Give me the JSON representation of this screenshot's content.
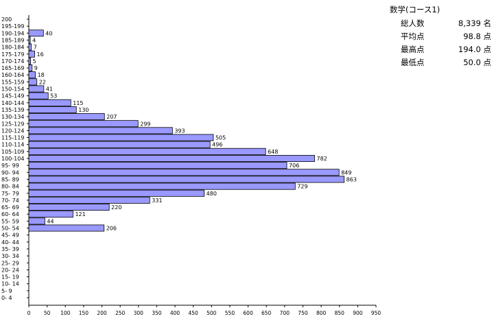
{
  "chart_data": {
    "type": "bar",
    "orientation": "horizontal",
    "categories": [
      "200",
      "195-199",
      "190-194",
      "185-189",
      "180-184",
      "175-179",
      "170-174",
      "165-169",
      "160-164",
      "155-159",
      "150-154",
      "145-149",
      "140-144",
      "135-139",
      "130-134",
      "125-129",
      "120-124",
      "115-119",
      "110-114",
      "105-109",
      "100-104",
      "95- 99",
      "90- 94",
      "85- 89",
      "80- 84",
      "75- 79",
      "70- 74",
      "65- 69",
      "60- 64",
      "55- 59",
      "50- 54",
      "45- 49",
      "40- 44",
      "35- 39",
      "30- 34",
      "25- 29",
      "20- 24",
      "15- 19",
      "10- 14",
      "5- 9",
      "0- 4"
    ],
    "values": [
      null,
      null,
      40,
      4,
      7,
      16,
      5,
      9,
      18,
      22,
      41,
      53,
      115,
      130,
      207,
      299,
      393,
      505,
      496,
      648,
      782,
      706,
      849,
      863,
      729,
      480,
      331,
      220,
      121,
      44,
      206,
      null,
      null,
      null,
      null,
      null,
      null,
      null,
      null,
      null,
      null
    ],
    "xlim": [
      0,
      950
    ],
    "xticks": [
      0,
      50,
      100,
      150,
      200,
      250,
      300,
      350,
      400,
      450,
      500,
      550,
      600,
      650,
      700,
      750,
      800,
      850,
      900,
      950
    ],
    "bar_color": "#9999ff",
    "grid": false,
    "title": "",
    "xlabel": "",
    "ylabel": ""
  },
  "stats": {
    "title": "数学(コース1)",
    "rows": [
      {
        "label": "総人数",
        "value": "8,339 名"
      },
      {
        "label": "平均点",
        "value": "98.8 点"
      },
      {
        "label": "最高点",
        "value": "194.0 点"
      },
      {
        "label": "最低点",
        "value": "50.0 点"
      }
    ]
  }
}
